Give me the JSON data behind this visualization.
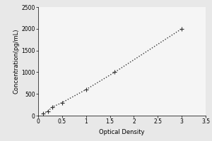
{
  "x_data": [
    0.1,
    0.2,
    0.3,
    0.5,
    1.0,
    1.6,
    3.0
  ],
  "y_data": [
    50,
    100,
    200,
    300,
    600,
    1000,
    2000
  ],
  "xlabel": "Optical Density",
  "ylabel": "Concentration(pg/mL)",
  "xlim": [
    0,
    3.5
  ],
  "ylim": [
    0,
    2500
  ],
  "xticks": [
    0,
    0.5,
    1,
    1.5,
    2,
    2.5,
    3,
    3.5
  ],
  "xtick_labels": [
    "0",
    "0.5",
    "1",
    "1.5",
    "2",
    "2.5",
    "3",
    "3.5"
  ],
  "yticks": [
    0,
    500,
    1000,
    1500,
    2000,
    2500
  ],
  "ytick_labels": [
    "0",
    "500",
    "1000",
    "1500",
    "2000",
    "2500"
  ],
  "marker_color": "#333333",
  "line_color": "#333333",
  "marker_style": "+",
  "line_style": ":",
  "marker_size": 4,
  "line_width": 1.0,
  "background_color": "#e8e8e8",
  "plot_background": "#f5f5f5",
  "label_fontsize": 6,
  "tick_fontsize": 5.5
}
